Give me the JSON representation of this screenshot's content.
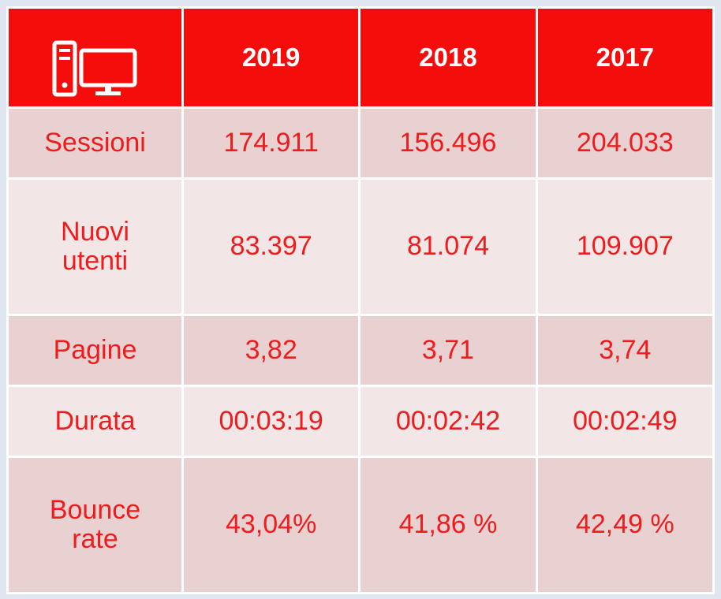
{
  "table": {
    "header": [
      "2019",
      "2018",
      "2017"
    ],
    "rows": [
      {
        "label": "Sessioni",
        "values": [
          "174.911",
          "156.496",
          "204.033"
        ]
      },
      {
        "label": "Nuovi\nutenti",
        "values": [
          "83.397",
          "81.074",
          "109.907"
        ]
      },
      {
        "label": "Pagine",
        "values": [
          "3,82",
          "3,71",
          "3,74"
        ]
      },
      {
        "label": "Durata",
        "values": [
          "00:03:19",
          "00:02:42",
          "00:02:49"
        ]
      },
      {
        "label": "Bounce\nrate",
        "values": [
          "43,04%",
          "41,86 %",
          "42,49 %"
        ]
      }
    ]
  }
}
